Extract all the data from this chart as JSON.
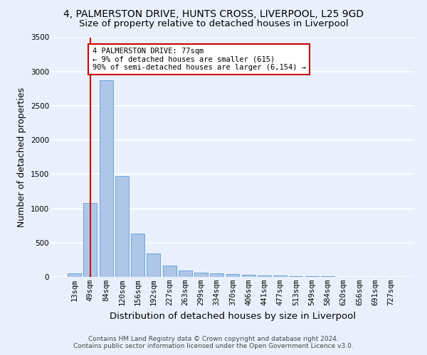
{
  "title_line1": "4, PALMERSTON DRIVE, HUNTS CROSS, LIVERPOOL, L25 9GD",
  "title_line2": "Size of property relative to detached houses in Liverpool",
  "xlabel": "Distribution of detached houses by size in Liverpool",
  "ylabel": "Number of detached properties",
  "categories": [
    "13sqm",
    "49sqm",
    "84sqm",
    "120sqm",
    "156sqm",
    "192sqm",
    "227sqm",
    "263sqm",
    "299sqm",
    "334sqm",
    "370sqm",
    "406sqm",
    "441sqm",
    "477sqm",
    "513sqm",
    "549sqm",
    "584sqm",
    "620sqm",
    "656sqm",
    "691sqm",
    "727sqm"
  ],
  "values": [
    55,
    1080,
    2870,
    1470,
    630,
    340,
    170,
    95,
    65,
    50,
    45,
    30,
    25,
    20,
    12,
    8,
    6,
    4,
    3,
    2,
    2
  ],
  "bar_color": "#aec6e8",
  "bar_edge_color": "#5b9bd5",
  "vline_x_idx": 1,
  "vline_color": "#cc0000",
  "annotation_text": "4 PALMERSTON DRIVE: 77sqm\n← 9% of detached houses are smaller (615)\n90% of semi-detached houses are larger (6,154) →",
  "annotation_box_color": "#ffffff",
  "annotation_box_edge": "#cc0000",
  "ylim": [
    0,
    3500
  ],
  "yticks": [
    0,
    500,
    1000,
    1500,
    2000,
    2500,
    3000,
    3500
  ],
  "footer_line1": "Contains HM Land Registry data © Crown copyright and database right 2024.",
  "footer_line2": "Contains public sector information licensed under the Open Government Licence v3.0.",
  "bg_color": "#eaf0fb",
  "grid_color": "#ffffff",
  "title_fontsize": 10,
  "subtitle_fontsize": 9.5,
  "axis_label_fontsize": 9,
  "tick_fontsize": 7.5,
  "footer_fontsize": 6.5
}
